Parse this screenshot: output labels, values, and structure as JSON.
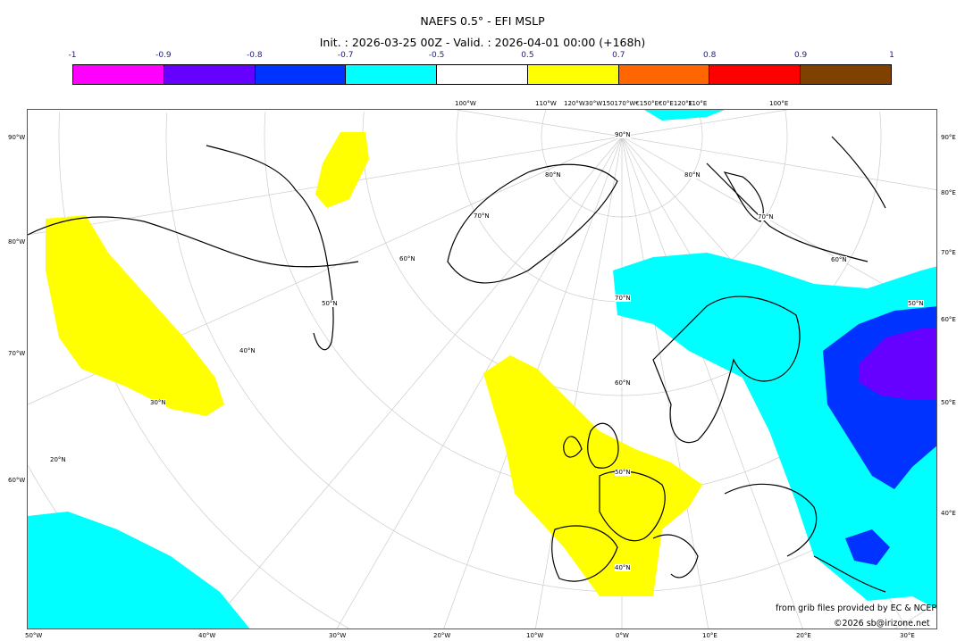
{
  "title": "NAEFS 0.5° - EFI MSLP",
  "subtitle": "Init. : 2026-03-25 00Z - Valid. : 2026-04-01 00:00 (+168h)",
  "colorbar": {
    "ticks": [
      "-1",
      "-0.9",
      "-0.8",
      "-0.7",
      "-0.5",
      "0.5",
      "0.7",
      "0.8",
      "0.9",
      "1"
    ],
    "colors": [
      "#ff00ff",
      "#6600ff",
      "#0033ff",
      "#00ffff",
      "#ffffff",
      "#ffff00",
      "#ff6600",
      "#ff0000",
      "#804000"
    ]
  },
  "axis_labels": {
    "left": [
      "90°W",
      "80°W",
      "70°W",
      "60°W"
    ],
    "right": [
      "90°E",
      "80°E",
      "70°E",
      "60°E",
      "50°E",
      "40°E"
    ],
    "bottom": [
      "50°W",
      "40°W",
      "30°W",
      "20°W",
      "10°W",
      "0°W",
      "10°E",
      "20°E",
      "30°E"
    ],
    "top": [
      "100°W",
      "110°W",
      "120°W30°W150170°W€150°E€0°E120°E",
      "110°E",
      "100°E"
    ],
    "lat": [
      "90°N",
      "80°N",
      "70°N",
      "60°N",
      "50°N",
      "40°N",
      "30°N",
      "20°N",
      "80°N",
      "70°N",
      "60°N",
      "50°N",
      "70°N",
      "60°N",
      "50°N",
      "40°N"
    ]
  },
  "credits": {
    "source": "from grib files provided by EC & NCEP",
    "copyright": "©2026 sb@irizone.net"
  }
}
